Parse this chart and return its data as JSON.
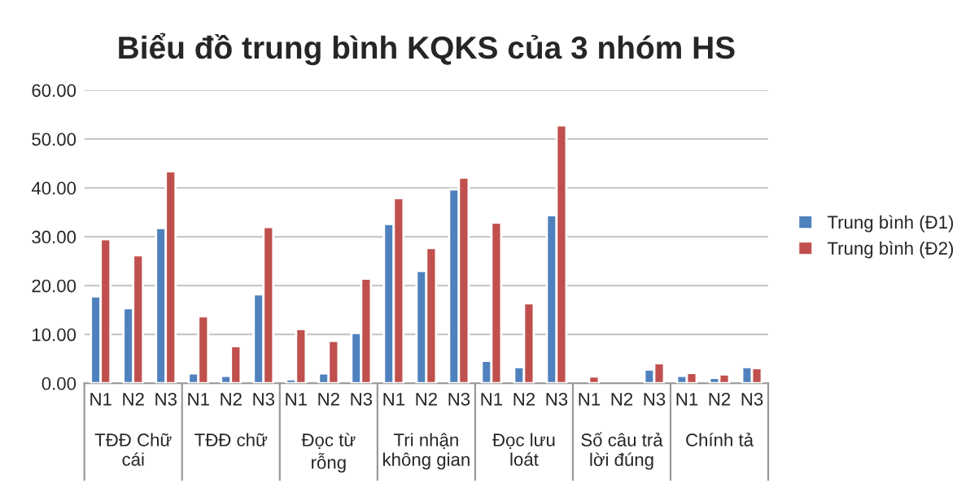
{
  "chart_data": {
    "type": "bar",
    "title": "Biểu đồ trung bình KQKS của 3 nhóm HS",
    "categories": [
      "N1",
      "N2",
      "N3",
      "N1",
      "N2",
      "N3",
      "N1",
      "N2",
      "N3",
      "N1",
      "N2",
      "N3",
      "N1",
      "N2",
      "N3",
      "N1",
      "N2",
      "N3",
      "N1",
      "N2",
      "N3"
    ],
    "annotations": [
      "TĐĐ Chữ\ncái",
      "TĐĐ chữ",
      "Đọc từ\nrỗng",
      "Tri nhận\nkhông gian",
      "Đọc lưu\nloát",
      "Số câu trả\nlời đúng",
      "Chính tả"
    ],
    "series": [
      {
        "name": "Trung bình (Đ1)",
        "color": "#4f81bd",
        "values": [
          17.8,
          15.4,
          31.8,
          2.0,
          1.5,
          18.2,
          0.8,
          2.0,
          10.3,
          32.6,
          23.0,
          39.7,
          4.6,
          3.3,
          34.4,
          null,
          null,
          2.8,
          1.5,
          1.1,
          3.3
        ]
      },
      {
        "name": "Trung bình (Đ2)",
        "color": "#c0504d",
        "values": [
          29.5,
          26.2,
          43.4,
          13.7,
          7.6,
          32.0,
          11.1,
          8.7,
          21.4,
          37.9,
          27.7,
          42.1,
          32.9,
          16.4,
          52.8,
          1.4,
          null,
          4.1,
          2.1,
          1.8,
          3.1
        ]
      }
    ],
    "ylim": [
      0,
      60
    ],
    "yticks": [
      {
        "value": 0,
        "label": "0.00"
      },
      {
        "value": 10,
        "label": "10.00"
      },
      {
        "value": 20,
        "label": "20.00"
      },
      {
        "value": 30,
        "label": "30.00"
      },
      {
        "value": 40,
        "label": "40.00"
      },
      {
        "value": 50,
        "label": "50.00"
      },
      {
        "value": 60,
        "label": "60.00"
      }
    ],
    "grid": "y",
    "legend": "right"
  }
}
